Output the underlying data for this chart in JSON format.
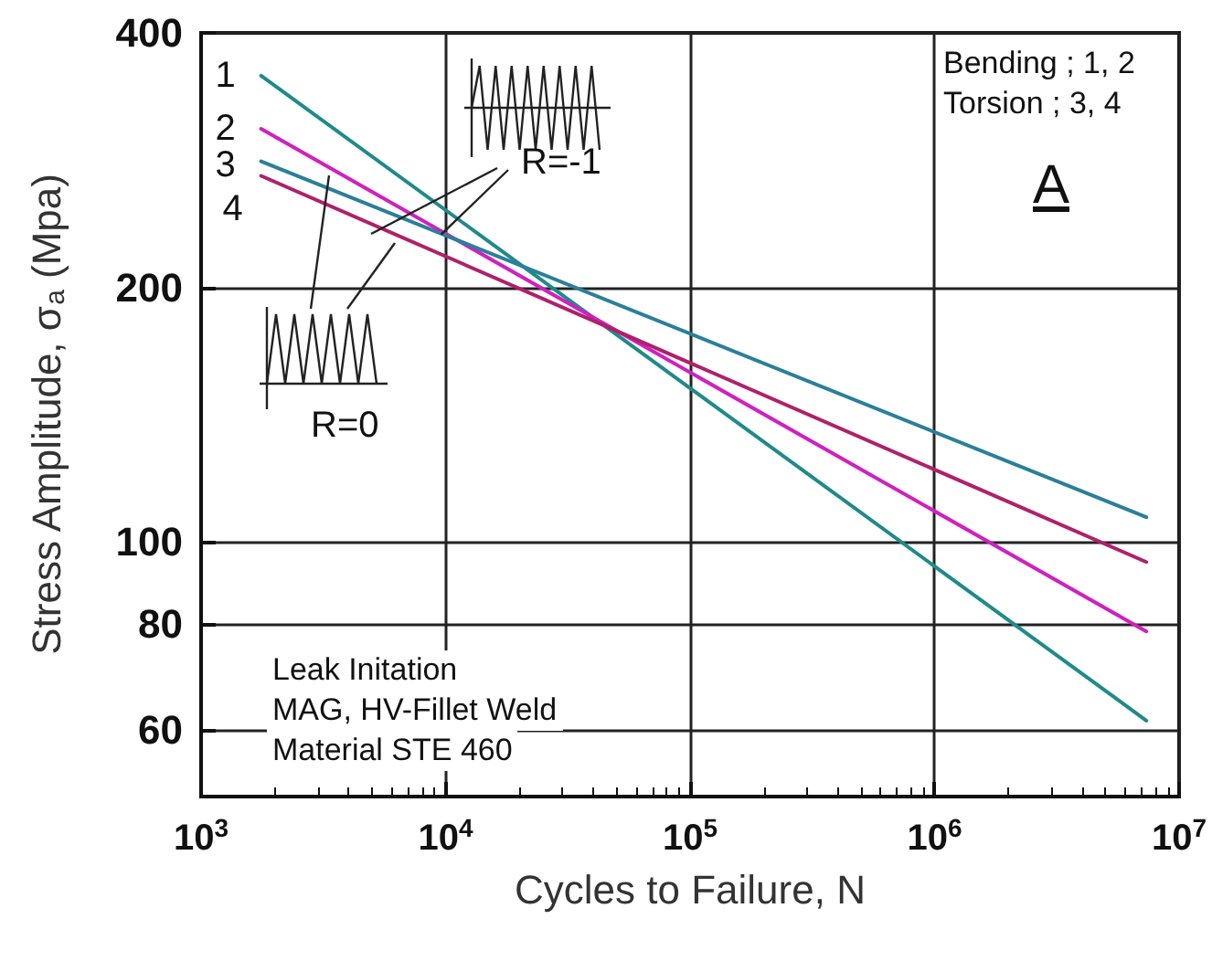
{
  "chart_data": {
    "type": "line",
    "xlabel": "Cycles to Failure, N",
    "ylabel": "Stress Amplitude, σ$_{a}$ (Mpa)",
    "x": [
      1760,
      7350000
    ],
    "series": [
      {
        "name": "1",
        "color": "#1f8a8a",
        "values": [
          356,
          61.5
        ]
      },
      {
        "name": "2",
        "color": "#d020c0",
        "values": [
          308,
          78.4
        ]
      },
      {
        "name": "3",
        "color": "#2a7f9a",
        "values": [
          282,
          107
        ]
      },
      {
        "name": "4",
        "color": "#b0206a",
        "values": [
          271,
          94.7
        ]
      }
    ],
    "log": "xy",
    "xlim": [
      1000,
      10000000
    ],
    "xticks": [
      {
        "value": 1000,
        "label": "10$^{3}$"
      },
      {
        "value": 10000,
        "label": "10$^{4}$"
      },
      {
        "value": 100000,
        "label": "10$^{5}$"
      },
      {
        "value": 1000000,
        "label": "10$^{6}$"
      },
      {
        "value": 10000000,
        "label": "10$^{7}$"
      }
    ],
    "ylim": [
      50,
      400
    ],
    "yticks": [
      60,
      80,
      100,
      200,
      400
    ],
    "grid": true,
    "legend": false,
    "marker": "none",
    "line_style": "solid",
    "annotations": [
      {
        "text": "R=-1",
        "x": 9600,
        "y": 231
      },
      "R=0",
      "Bending ; 1, 2",
      "Torsion ; 3, 4",
      "A",
      "Leak Initation",
      "MAG, HV-Fillet Weld",
      "Material STE 460"
    ]
  }
}
